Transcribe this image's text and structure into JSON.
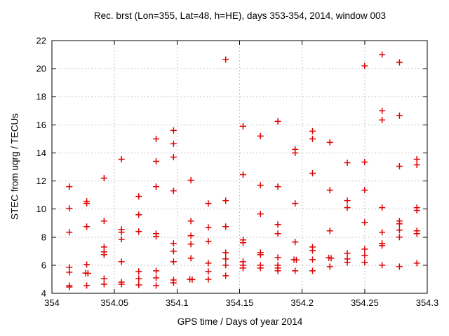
{
  "chart_data": {
    "type": "scatter",
    "title": "Rec. brst (Lon=355, Lat=48, h=HE), days 353-354, 2014, window 003",
    "xlabel": "GPS time / Days of year 2014",
    "ylabel": "STEC from uqrg / TECUs",
    "xlim": [
      354,
      354.3
    ],
    "ylim": [
      4,
      22
    ],
    "x_tick_values": [
      354,
      354.05,
      354.1,
      354.15,
      354.2,
      354.25,
      354.3
    ],
    "x_tick_labels": [
      "354",
      "354.05",
      "354.1",
      "354.15",
      "354.2",
      "354.25",
      "354.3"
    ],
    "y_tick_values": [
      4,
      6,
      8,
      10,
      12,
      14,
      16,
      18,
      20,
      22
    ],
    "y_tick_labels": [
      "4",
      "6",
      "8",
      "10",
      "12",
      "14",
      "16",
      "18",
      "20",
      "22"
    ],
    "grid": true,
    "legend_position": "none",
    "marker": "plus",
    "marker_color": "#e00000",
    "grid_color": "#b0b0b0",
    "axis_color": "#000000",
    "series": [
      {
        "points": [
          [
            354.0139,
            11.6
          ],
          [
            354.0139,
            10.05
          ],
          [
            354.0139,
            8.35
          ],
          [
            354.0139,
            5.85
          ],
          [
            354.0139,
            5.5
          ],
          [
            354.0139,
            4.55
          ],
          [
            354.0139,
            4.45
          ],
          [
            354.0278,
            10.55
          ],
          [
            354.0278,
            10.4
          ],
          [
            354.0278,
            8.75
          ],
          [
            354.0278,
            6.05
          ],
          [
            354.0269,
            5.44
          ],
          [
            354.0288,
            5.42
          ],
          [
            354.0278,
            4.55
          ],
          [
            354.0417,
            12.2
          ],
          [
            354.0417,
            9.15
          ],
          [
            354.0417,
            7.3
          ],
          [
            354.0417,
            6.95
          ],
          [
            354.0417,
            6.75
          ],
          [
            354.0417,
            5.05
          ],
          [
            354.0417,
            4.65
          ],
          [
            354.0556,
            13.55
          ],
          [
            354.0556,
            8.55
          ],
          [
            354.0556,
            8.35
          ],
          [
            354.0556,
            7.85
          ],
          [
            354.0556,
            6.25
          ],
          [
            354.0556,
            4.8
          ],
          [
            354.0556,
            4.65
          ],
          [
            354.0694,
            10.9
          ],
          [
            354.0694,
            9.6
          ],
          [
            354.0694,
            8.4
          ],
          [
            354.0694,
            5.55
          ],
          [
            354.0694,
            5.05
          ],
          [
            354.0694,
            4.6
          ],
          [
            354.0833,
            15.0
          ],
          [
            354.0833,
            13.4
          ],
          [
            354.0833,
            11.6
          ],
          [
            354.0833,
            8.25
          ],
          [
            354.0833,
            8.05
          ],
          [
            354.0833,
            5.6
          ],
          [
            354.0833,
            5.1
          ],
          [
            354.0833,
            4.55
          ],
          [
            354.0972,
            15.6
          ],
          [
            354.0972,
            14.65
          ],
          [
            354.0972,
            13.7
          ],
          [
            354.0972,
            11.3
          ],
          [
            354.0972,
            7.55
          ],
          [
            354.0972,
            7.0
          ],
          [
            354.0972,
            6.25
          ],
          [
            354.0972,
            4.95
          ],
          [
            354.0972,
            4.75
          ],
          [
            354.1111,
            12.05
          ],
          [
            354.1111,
            9.15
          ],
          [
            354.1111,
            8.1
          ],
          [
            354.1111,
            7.5
          ],
          [
            354.1111,
            6.5
          ],
          [
            354.1102,
            5.0
          ],
          [
            354.1121,
            4.98
          ],
          [
            354.125,
            10.4
          ],
          [
            354.125,
            8.7
          ],
          [
            354.125,
            7.7
          ],
          [
            354.125,
            6.15
          ],
          [
            354.125,
            5.55
          ],
          [
            354.125,
            5.0
          ],
          [
            354.1389,
            20.65
          ],
          [
            354.1389,
            10.6
          ],
          [
            354.1389,
            8.75
          ],
          [
            354.1389,
            6.9
          ],
          [
            354.1389,
            6.45
          ],
          [
            354.1389,
            6.0
          ],
          [
            354.1389,
            5.25
          ],
          [
            354.1528,
            15.9
          ],
          [
            354.1528,
            12.45
          ],
          [
            354.1528,
            7.8
          ],
          [
            354.1528,
            7.6
          ],
          [
            354.1528,
            6.25
          ],
          [
            354.1528,
            6.0
          ],
          [
            354.1528,
            5.8
          ],
          [
            354.1667,
            15.2
          ],
          [
            354.1667,
            11.7
          ],
          [
            354.1667,
            9.65
          ],
          [
            354.1667,
            6.9
          ],
          [
            354.1667,
            6.75
          ],
          [
            354.1667,
            6.0
          ],
          [
            354.1667,
            5.8
          ],
          [
            354.1806,
            16.25
          ],
          [
            354.1806,
            11.6
          ],
          [
            354.1806,
            8.9
          ],
          [
            354.1806,
            8.25
          ],
          [
            354.1806,
            6.55
          ],
          [
            354.1806,
            6.0
          ],
          [
            354.1806,
            5.8
          ],
          [
            354.1806,
            5.6
          ],
          [
            354.1944,
            14.25
          ],
          [
            354.1944,
            14.0
          ],
          [
            354.1944,
            10.4
          ],
          [
            354.1944,
            7.65
          ],
          [
            354.1935,
            6.4
          ],
          [
            354.1954,
            6.38
          ],
          [
            354.1944,
            5.6
          ],
          [
            354.2083,
            15.55
          ],
          [
            354.2083,
            15.0
          ],
          [
            354.2083,
            12.55
          ],
          [
            354.2083,
            7.3
          ],
          [
            354.2083,
            7.05
          ],
          [
            354.2083,
            6.4
          ],
          [
            354.2083,
            5.6
          ],
          [
            354.2222,
            14.75
          ],
          [
            354.2222,
            11.35
          ],
          [
            354.2222,
            8.45
          ],
          [
            354.2213,
            6.53
          ],
          [
            354.2232,
            6.5
          ],
          [
            354.2222,
            5.9
          ],
          [
            354.2361,
            13.3
          ],
          [
            354.2361,
            10.6
          ],
          [
            354.2361,
            10.1
          ],
          [
            354.2361,
            6.85
          ],
          [
            354.2361,
            6.45
          ],
          [
            354.2361,
            6.2
          ],
          [
            354.25,
            20.2
          ],
          [
            354.25,
            13.35
          ],
          [
            354.25,
            11.35
          ],
          [
            354.25,
            9.05
          ],
          [
            354.25,
            7.15
          ],
          [
            354.25,
            6.7
          ],
          [
            354.25,
            6.2
          ],
          [
            354.2639,
            21.0
          ],
          [
            354.2639,
            17.0
          ],
          [
            354.2639,
            16.35
          ],
          [
            354.2639,
            10.1
          ],
          [
            354.2639,
            8.35
          ],
          [
            354.2639,
            7.55
          ],
          [
            354.2639,
            7.4
          ],
          [
            354.2639,
            6.0
          ],
          [
            354.2778,
            20.45
          ],
          [
            354.2778,
            16.65
          ],
          [
            354.2778,
            13.05
          ],
          [
            354.2778,
            9.15
          ],
          [
            354.2778,
            8.95
          ],
          [
            354.2778,
            8.5
          ],
          [
            354.2778,
            8.0
          ],
          [
            354.2778,
            5.9
          ],
          [
            354.2917,
            13.55
          ],
          [
            354.2917,
            13.15
          ],
          [
            354.2917,
            10.1
          ],
          [
            354.2917,
            9.9
          ],
          [
            354.2917,
            8.45
          ],
          [
            354.2917,
            8.25
          ],
          [
            354.2917,
            6.15
          ]
        ]
      }
    ]
  }
}
